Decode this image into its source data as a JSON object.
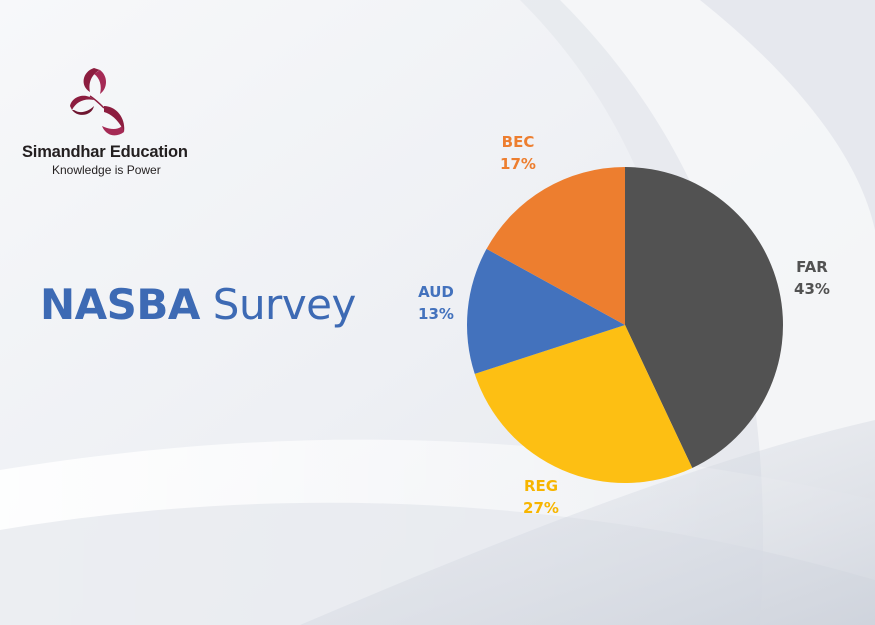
{
  "brand": {
    "name": "Simandhar Education",
    "tagline": "Knowledge is Power",
    "logo_icon": "leaf-swirl-icon",
    "logo_color": "#8c1d3f"
  },
  "title": {
    "bold_part": "NASBA",
    "regular_part": "Survey",
    "color": "#3d6ab4"
  },
  "chart_data": {
    "type": "pie",
    "title": "NASBA Survey",
    "start_angle_deg": 0,
    "direction": "clockwise",
    "slices": [
      {
        "label": "FAR",
        "value": 43,
        "display": "43%",
        "color": "#525252",
        "label_color": "#525252"
      },
      {
        "label": "REG",
        "value": 27,
        "display": "27%",
        "color": "#fdbf13",
        "label_color": "#f7b500"
      },
      {
        "label": "AUD",
        "value": 13,
        "display": "13%",
        "color": "#4372bd",
        "label_color": "#4372bd"
      },
      {
        "label": "BEC",
        "value": 17,
        "display": "17%",
        "color": "#ed7e2f",
        "label_color": "#ed7e2f"
      }
    ],
    "legend": "none",
    "data_labels": "outside"
  }
}
